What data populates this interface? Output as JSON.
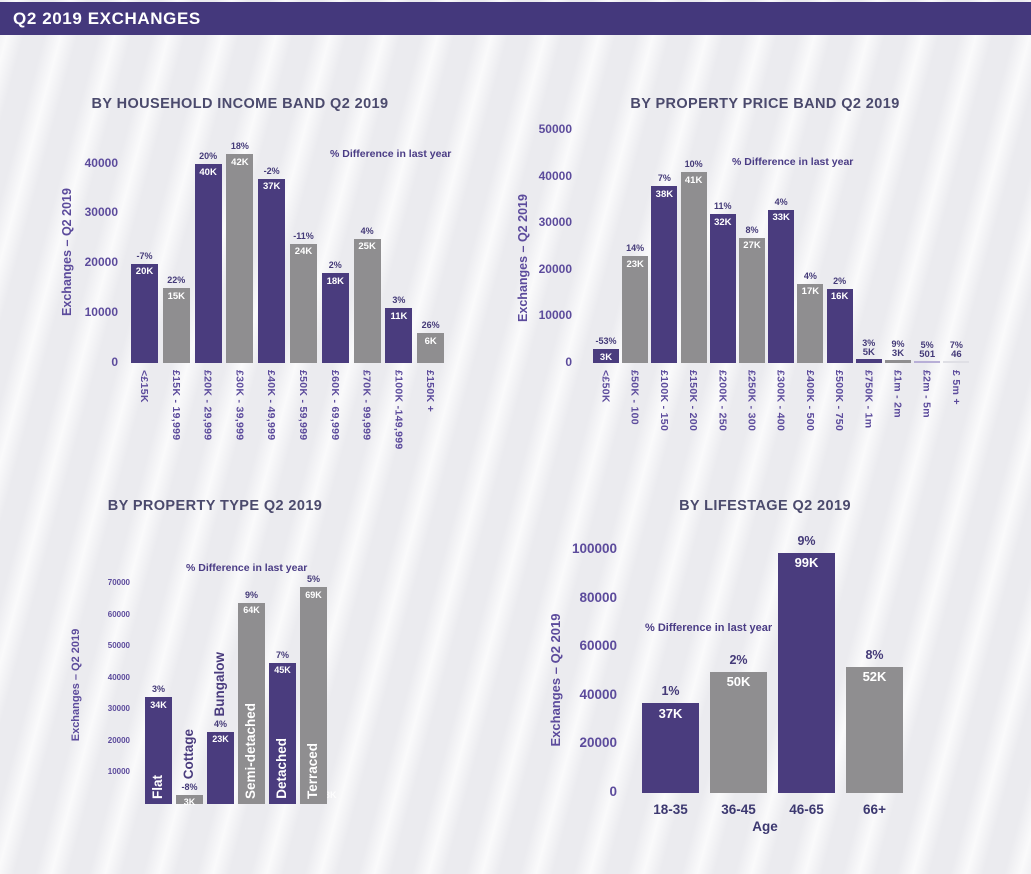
{
  "header": {
    "title": "Q2 2019 EXCHANGES"
  },
  "colors": {
    "header_bg": "#44387c",
    "page_bg": "#ebebef",
    "purple": "#4a3c7e",
    "gray": "#8f8e90",
    "light_purple": "#b8afd7",
    "light_gray": "#dfdfe5",
    "title_text": "#4b4a6d",
    "axis_text": "#5c4b9c",
    "pct_text": "#443a78",
    "value_text": "#ffffff"
  },
  "chart_data": [
    {
      "type": "bar",
      "title": "BY HOUSEHOLD INCOME BAND Q2 2019",
      "ylabel": "Exchanges – Q2 2019",
      "legend_note": "% Difference in last year",
      "ylim": [
        0,
        45000
      ],
      "yticks": [
        0,
        10000,
        20000,
        30000,
        40000
      ],
      "categories": [
        "<£15K",
        "£15K - 19,999",
        "£20K - 29,999",
        "£30K - 39,999",
        "£40K - 49,999",
        "£50K - 59,999",
        "£60K - 69,999",
        "£70K - 99,999",
        "£100K -149,999",
        "£150K +"
      ],
      "values": [
        20000,
        15000,
        40000,
        42000,
        37000,
        24000,
        18000,
        25000,
        11000,
        6000
      ],
      "value_labels": [
        "20K",
        "15K",
        "40K",
        "42K",
        "37K",
        "24K",
        "18K",
        "25K",
        "11K",
        "6K"
      ],
      "pct_labels": [
        "-7%",
        "22%",
        "20%",
        "18%",
        "-2%",
        "-11%",
        "2%",
        "4%",
        "3%",
        "26%"
      ],
      "bar_colors": [
        "purple",
        "gray",
        "purple",
        "gray",
        "purple",
        "gray",
        "purple",
        "gray",
        "purple",
        "gray"
      ]
    },
    {
      "type": "bar",
      "title": "BY PROPERTY PRICE BAND Q2 2019",
      "ylabel": "Exchanges – Q2 2019",
      "legend_note": "% Difference in last year",
      "ylim": [
        0,
        50000
      ],
      "yticks": [
        0,
        10000,
        20000,
        30000,
        40000,
        50000
      ],
      "categories": [
        "<£50K",
        "£50K - 100",
        "£100K - 150",
        "£150K - 200",
        "£200K - 250",
        "£250K - 300",
        "£300K - 400",
        "£400K - 500",
        "£500K - 750",
        "£750K - 1m",
        "£1m - 2m",
        "£2m - 5m",
        "£ 5m +"
      ],
      "values": [
        3000,
        23000,
        38000,
        41000,
        32000,
        27000,
        33000,
        17000,
        16000,
        5000,
        3000,
        501,
        46
      ],
      "value_labels": [
        "3K",
        "23K",
        "38K",
        "41K",
        "32K",
        "27K",
        "33K",
        "17K",
        "16K",
        "5K",
        "3K",
        "501",
        "46"
      ],
      "pct_labels": [
        "-53%",
        "14%",
        "7%",
        "10%",
        "11%",
        "8%",
        "4%",
        "4%",
        "2%",
        "3%",
        "9%",
        "5%",
        "7%"
      ],
      "bar_colors": [
        "purple",
        "gray",
        "purple",
        "gray",
        "purple",
        "gray",
        "purple",
        "gray",
        "purple",
        "purple",
        "gray",
        "light_purple",
        "light_gray"
      ]
    },
    {
      "type": "bar",
      "title": "BY PROPERTY TYPE Q2 2019",
      "ylabel": "Exchanges – Q2 2019",
      "legend_note": "% Difference in last year",
      "ylim": [
        0,
        72000
      ],
      "yticks": [
        10000,
        20000,
        30000,
        40000,
        50000,
        60000,
        70000
      ],
      "categories": [
        "Flat",
        "Cottage",
        "Bungalow",
        "Semi-detached",
        "Detached",
        "Terraced"
      ],
      "values": [
        34000,
        3000,
        23000,
        64000,
        45000,
        69000
      ],
      "value_labels": [
        "34K",
        "3K",
        "23K",
        "64K",
        "45K",
        "69K"
      ],
      "pct_labels": [
        "3%",
        "-8%",
        "4%",
        "9%",
        "7%",
        "5%"
      ],
      "bar_colors": [
        "purple",
        "gray",
        "purple",
        "gray",
        "purple",
        "gray"
      ],
      "stray_label": "3K"
    },
    {
      "type": "bar",
      "title": "BY LIFESTAGE Q2 2019",
      "ylabel": "Exchanges – Q2 2019",
      "xlabel": "Age",
      "legend_note": "% Difference in last year",
      "ylim": [
        0,
        105000
      ],
      "yticks": [
        0,
        20000,
        40000,
        60000,
        80000,
        100000
      ],
      "categories": [
        "18-35",
        "36-45",
        "46-65",
        "66+"
      ],
      "values": [
        37000,
        50000,
        99000,
        52000
      ],
      "value_labels": [
        "37K",
        "50K",
        "99K",
        "52K"
      ],
      "pct_labels": [
        "1%",
        "2%",
        "9%",
        "8%"
      ],
      "bar_colors": [
        "purple",
        "gray",
        "purple",
        "gray"
      ]
    }
  ]
}
